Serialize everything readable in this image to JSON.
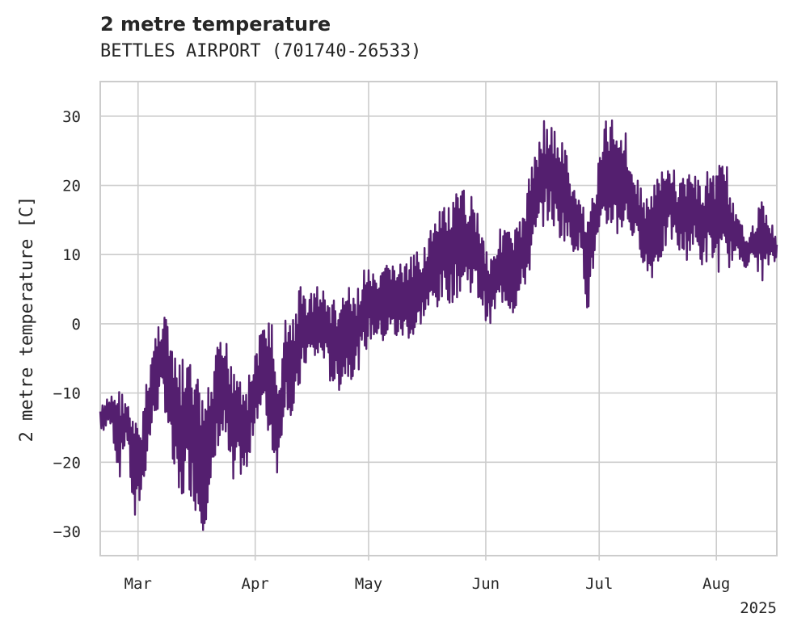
{
  "chart_data": {
    "type": "line",
    "title": "2 metre temperature",
    "subtitle": "BETTLES AIRPORT (701740-26533)",
    "ylabel": "2 metre temperature [C]",
    "xlabel": "",
    "year_label": "2025",
    "x_start": "2025-02-19",
    "x_end": "2025-08-17",
    "ylim": [
      -33.5,
      35
    ],
    "y_ticks": [
      30,
      20,
      10,
      0,
      -10,
      -20,
      -30
    ],
    "y_tick_labels": [
      "30",
      "20",
      "10",
      "0",
      "−10",
      "−20",
      "−30"
    ],
    "x_ticks": [
      {
        "date": "2025-03-01",
        "label": "Mar"
      },
      {
        "date": "2025-04-01",
        "label": "Apr"
      },
      {
        "date": "2025-05-01",
        "label": "May"
      },
      {
        "date": "2025-06-01",
        "label": "Jun"
      },
      {
        "date": "2025-07-01",
        "label": "Jul"
      },
      {
        "date": "2025-08-01",
        "label": "Aug"
      }
    ],
    "grid": true,
    "line_color": "#541f6f",
    "series": [
      {
        "values_approx_daily_min_max": [
          {
            "date": "2025-02-19",
            "min": -16,
            "max": -12
          },
          {
            "date": "2025-02-22",
            "min": -15,
            "max": -10
          },
          {
            "date": "2025-02-24",
            "min": -23,
            "max": -9
          },
          {
            "date": "2025-02-26",
            "min": -16,
            "max": -11
          },
          {
            "date": "2025-02-28",
            "min": -30,
            "max": -14
          },
          {
            "date": "2025-03-02",
            "min": -25,
            "max": -14
          },
          {
            "date": "2025-03-04",
            "min": -18,
            "max": -5
          },
          {
            "date": "2025-03-06",
            "min": -13,
            "max": 0
          },
          {
            "date": "2025-03-08",
            "min": -12,
            "max": 4
          },
          {
            "date": "2025-03-10",
            "min": -21,
            "max": -4
          },
          {
            "date": "2025-03-12",
            "min": -28,
            "max": -5
          },
          {
            "date": "2025-03-14",
            "min": -23,
            "max": -5
          },
          {
            "date": "2025-03-16",
            "min": -27,
            "max": -6
          },
          {
            "date": "2025-03-18",
            "min": -30,
            "max": -10
          },
          {
            "date": "2025-03-20",
            "min": -28,
            "max": -9
          },
          {
            "date": "2025-03-22",
            "min": -18,
            "max": -3
          },
          {
            "date": "2025-03-24",
            "min": -17,
            "max": -2
          },
          {
            "date": "2025-03-26",
            "min": -26,
            "max": -3
          },
          {
            "date": "2025-03-28",
            "min": -22,
            "max": -6
          },
          {
            "date": "2025-03-30",
            "min": -23,
            "max": -8
          },
          {
            "date": "2025-04-01",
            "min": -14,
            "max": -4
          },
          {
            "date": "2025-04-03",
            "min": -13,
            "max": 0
          },
          {
            "date": "2025-04-05",
            "min": -18,
            "max": 3
          },
          {
            "date": "2025-04-07",
            "min": -22,
            "max": -10
          },
          {
            "date": "2025-04-09",
            "min": -11,
            "max": 1
          },
          {
            "date": "2025-04-11",
            "min": -16,
            "max": 2
          },
          {
            "date": "2025-04-13",
            "min": -9,
            "max": 6
          },
          {
            "date": "2025-04-15",
            "min": -5,
            "max": 4
          },
          {
            "date": "2025-04-17",
            "min": -6,
            "max": 6
          },
          {
            "date": "2025-04-19",
            "min": -5,
            "max": 5
          },
          {
            "date": "2025-04-21",
            "min": -9,
            "max": 4
          },
          {
            "date": "2025-04-23",
            "min": -10,
            "max": 3
          },
          {
            "date": "2025-04-25",
            "min": -8,
            "max": 6
          },
          {
            "date": "2025-04-27",
            "min": -8,
            "max": 4
          },
          {
            "date": "2025-04-29",
            "min": -6,
            "max": 7
          },
          {
            "date": "2025-05-01",
            "min": -3,
            "max": 9
          },
          {
            "date": "2025-05-03",
            "min": -2,
            "max": 6
          },
          {
            "date": "2025-05-05",
            "min": -3,
            "max": 8
          },
          {
            "date": "2025-05-07",
            "min": -2,
            "max": 10
          },
          {
            "date": "2025-05-09",
            "min": -3,
            "max": 9
          },
          {
            "date": "2025-05-11",
            "min": -2,
            "max": 9
          },
          {
            "date": "2025-05-13",
            "min": -3,
            "max": 10
          },
          {
            "date": "2025-05-15",
            "min": 0,
            "max": 11
          },
          {
            "date": "2025-05-17",
            "min": 1,
            "max": 14
          },
          {
            "date": "2025-05-19",
            "min": 2,
            "max": 15
          },
          {
            "date": "2025-05-21",
            "min": 3,
            "max": 18
          },
          {
            "date": "2025-05-23",
            "min": 3,
            "max": 17
          },
          {
            "date": "2025-05-25",
            "min": 4,
            "max": 20
          },
          {
            "date": "2025-05-27",
            "min": 5,
            "max": 19
          },
          {
            "date": "2025-05-29",
            "min": 4,
            "max": 19
          },
          {
            "date": "2025-05-31",
            "min": 2,
            "max": 14
          },
          {
            "date": "2025-06-02",
            "min": -1,
            "max": 10
          },
          {
            "date": "2025-06-04",
            "min": 2,
            "max": 13
          },
          {
            "date": "2025-06-06",
            "min": 3,
            "max": 15
          },
          {
            "date": "2025-06-08",
            "min": 1,
            "max": 13
          },
          {
            "date": "2025-06-10",
            "min": 3,
            "max": 15
          },
          {
            "date": "2025-06-12",
            "min": 6,
            "max": 20
          },
          {
            "date": "2025-06-14",
            "min": 10,
            "max": 26
          },
          {
            "date": "2025-06-16",
            "min": 14,
            "max": 30
          },
          {
            "date": "2025-06-18",
            "min": 15,
            "max": 29
          },
          {
            "date": "2025-06-20",
            "min": 12,
            "max": 28
          },
          {
            "date": "2025-06-22",
            "min": 12,
            "max": 26
          },
          {
            "date": "2025-06-24",
            "min": 10,
            "max": 20
          },
          {
            "date": "2025-06-26",
            "min": 11,
            "max": 18
          },
          {
            "date": "2025-06-28",
            "min": 1,
            "max": 17
          },
          {
            "date": "2025-06-30",
            "min": 10,
            "max": 20
          },
          {
            "date": "2025-07-02",
            "min": 11,
            "max": 29
          },
          {
            "date": "2025-07-04",
            "min": 14,
            "max": 30
          },
          {
            "date": "2025-07-06",
            "min": 12,
            "max": 31
          },
          {
            "date": "2025-07-08",
            "min": 14,
            "max": 28
          },
          {
            "date": "2025-07-10",
            "min": 12,
            "max": 22
          },
          {
            "date": "2025-07-12",
            "min": 10,
            "max": 20
          },
          {
            "date": "2025-07-14",
            "min": 6,
            "max": 18
          },
          {
            "date": "2025-07-16",
            "min": 7,
            "max": 22
          },
          {
            "date": "2025-07-18",
            "min": 10,
            "max": 22
          },
          {
            "date": "2025-07-20",
            "min": 12,
            "max": 24
          },
          {
            "date": "2025-07-22",
            "min": 10,
            "max": 20
          },
          {
            "date": "2025-07-24",
            "min": 9,
            "max": 23
          },
          {
            "date": "2025-07-26",
            "min": 11,
            "max": 22
          },
          {
            "date": "2025-07-28",
            "min": 8,
            "max": 20
          },
          {
            "date": "2025-07-30",
            "min": 9,
            "max": 23
          },
          {
            "date": "2025-08-01",
            "min": 8,
            "max": 22
          },
          {
            "date": "2025-08-03",
            "min": 6,
            "max": 28
          },
          {
            "date": "2025-08-05",
            "min": 9,
            "max": 18
          },
          {
            "date": "2025-08-07",
            "min": 9,
            "max": 15
          },
          {
            "date": "2025-08-09",
            "min": 8,
            "max": 13
          },
          {
            "date": "2025-08-11",
            "min": 9,
            "max": 15
          },
          {
            "date": "2025-08-13",
            "min": 6,
            "max": 18
          },
          {
            "date": "2025-08-15",
            "min": 8,
            "max": 16
          },
          {
            "date": "2025-08-17",
            "min": 9,
            "max": 12
          }
        ]
      }
    ]
  }
}
